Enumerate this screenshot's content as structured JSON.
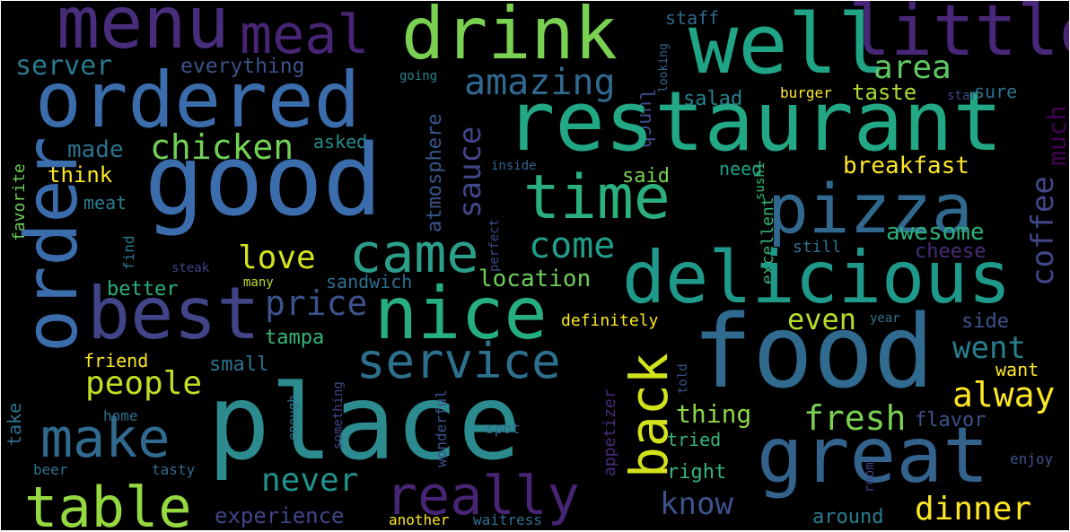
{
  "words": [
    {
      "text": "menu",
      "color": "#472d7b"
    },
    {
      "text": "meal",
      "color": "#482475"
    },
    {
      "text": "drink",
      "color": "#7ad151"
    },
    {
      "text": "lunch",
      "color": "#3e4989"
    },
    {
      "text": "staff",
      "color": "#31688e"
    },
    {
      "text": "well",
      "color": "#20a486"
    },
    {
      "text": "little",
      "color": "#482777"
    },
    {
      "text": "looking",
      "color": "#31688e"
    },
    {
      "text": "server",
      "color": "#2a788e"
    },
    {
      "text": "everything",
      "color": "#3b5289"
    },
    {
      "text": "going",
      "color": "#26828e"
    },
    {
      "text": "ordered",
      "color": "#3b6dad"
    },
    {
      "text": "amazing",
      "color": "#31688e"
    },
    {
      "text": "area",
      "color": "#5ec962"
    },
    {
      "text": "sure",
      "color": "#2c728e"
    },
    {
      "text": "restaurant",
      "color": "#22a884"
    },
    {
      "text": "salad",
      "color": "#25848e"
    },
    {
      "text": "burger",
      "color": "#fde725"
    },
    {
      "text": "taste",
      "color": "#aadc32"
    },
    {
      "text": "star",
      "color": "#3e4989"
    },
    {
      "text": "coffee",
      "color": "#404688"
    },
    {
      "text": "much",
      "color": "#440154"
    },
    {
      "text": "atmosphere",
      "color": "#39568c"
    },
    {
      "text": "chicken",
      "color": "#73d056"
    },
    {
      "text": "made",
      "color": "#2c728e"
    },
    {
      "text": "asked",
      "color": "#228d8d"
    },
    {
      "text": "favorite",
      "color": "#6ece58"
    },
    {
      "text": "think",
      "color": "#fde725"
    },
    {
      "text": "good",
      "color": "#3b6dad"
    },
    {
      "text": "sauce",
      "color": "#404688"
    },
    {
      "text": "inside",
      "color": "#33638d"
    },
    {
      "text": "order",
      "color": "#3b6dad"
    },
    {
      "text": "time",
      "color": "#2ab07f"
    },
    {
      "text": "said",
      "color": "#7ad151"
    },
    {
      "text": "need",
      "color": "#1fa187"
    },
    {
      "text": "sushi",
      "color": "#35b779"
    },
    {
      "text": "breakfast",
      "color": "#fde725"
    },
    {
      "text": "pizza",
      "color": "#31688e"
    },
    {
      "text": "meat",
      "color": "#287d8e"
    },
    {
      "text": "find",
      "color": "#2a788e"
    },
    {
      "text": "perfect",
      "color": "#3e4989"
    },
    {
      "text": "excellent",
      "color": "#35b779"
    },
    {
      "text": "came",
      "color": "#2c9f8a"
    },
    {
      "text": "come",
      "color": "#1f9e89"
    },
    {
      "text": "steak",
      "color": "#414487"
    },
    {
      "text": "love",
      "color": "#d2e21b"
    },
    {
      "text": "awesome",
      "color": "#2db27d"
    },
    {
      "text": "cheese",
      "color": "#472c7a"
    },
    {
      "text": "still",
      "color": "#2c728e"
    },
    {
      "text": "delicious",
      "color": "#1f9a8a"
    },
    {
      "text": "many",
      "color": "#bddf26"
    },
    {
      "text": "sandwich",
      "color": "#2d708e"
    },
    {
      "text": "location",
      "color": "#6ece58"
    },
    {
      "text": "better",
      "color": "#2ab07f"
    },
    {
      "text": "best",
      "color": "#414487"
    },
    {
      "text": "price",
      "color": "#3b528b"
    },
    {
      "text": "nice",
      "color": "#26ad81"
    },
    {
      "text": "definitely",
      "color": "#fde725"
    },
    {
      "text": "even",
      "color": "#b5de2b"
    },
    {
      "text": "year",
      "color": "#2c728e"
    },
    {
      "text": "side",
      "color": "#3b528b"
    },
    {
      "text": "food",
      "color": "#306a8e"
    },
    {
      "text": "tampa",
      "color": "#35b779"
    },
    {
      "text": "went",
      "color": "#287d8e"
    },
    {
      "text": "friend",
      "color": "#fde725"
    },
    {
      "text": "small",
      "color": "#2c728e"
    },
    {
      "text": "service",
      "color": "#2d708e"
    },
    {
      "text": "people",
      "color": "#c2df23"
    },
    {
      "text": "place",
      "color": "#2c8b8e"
    },
    {
      "text": "told",
      "color": "#3b528b"
    },
    {
      "text": "want",
      "color": "#fde725"
    },
    {
      "text": "alway",
      "color": "#fde725"
    },
    {
      "text": "wonderful",
      "color": "#3b528b"
    },
    {
      "text": "appetizer",
      "color": "#472d7b"
    },
    {
      "text": "back",
      "color": "#d2e21b"
    },
    {
      "text": "take",
      "color": "#2c728e"
    },
    {
      "text": "home",
      "color": "#2c728e"
    },
    {
      "text": "enough",
      "color": "#2c728e"
    },
    {
      "text": "something",
      "color": "#404688"
    },
    {
      "text": "make",
      "color": "#306a8e"
    },
    {
      "text": "fresh",
      "color": "#7ad151"
    },
    {
      "text": "thing",
      "color": "#8bd646"
    },
    {
      "text": "flavor",
      "color": "#3b528b"
    },
    {
      "text": "spot",
      "color": "#306a8e"
    },
    {
      "text": "tried",
      "color": "#35b779"
    },
    {
      "text": "great",
      "color": "#33638d"
    },
    {
      "text": "beer",
      "color": "#2c728e"
    },
    {
      "text": "tasty",
      "color": "#31688e"
    },
    {
      "text": "enjoy",
      "color": "#3b528b"
    },
    {
      "text": "right",
      "color": "#35b779"
    },
    {
      "text": "room",
      "color": "#424086"
    },
    {
      "text": "table",
      "color": "#95d840"
    },
    {
      "text": "never",
      "color": "#21918c"
    },
    {
      "text": "really",
      "color": "#482475"
    },
    {
      "text": "know",
      "color": "#3b528b"
    },
    {
      "text": "dinner",
      "color": "#fde725"
    },
    {
      "text": "experience",
      "color": "#404688"
    },
    {
      "text": "around",
      "color": "#287d8e"
    },
    {
      "text": "another",
      "color": "#fde725"
    },
    {
      "text": "waitress",
      "color": "#2c728e"
    }
  ]
}
